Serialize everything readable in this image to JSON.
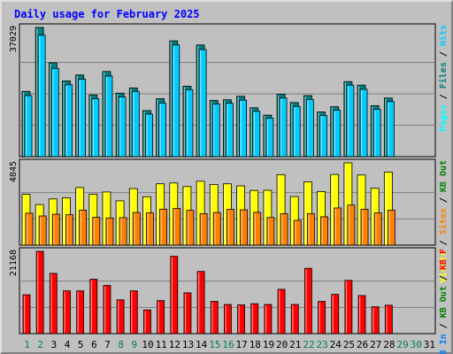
{
  "chart_data": {
    "type": "bar",
    "title": "Daily usage for February 2025",
    "categories": [
      "1",
      "2",
      "3",
      "4",
      "5",
      "6",
      "7",
      "8",
      "9",
      "10",
      "11",
      "12",
      "13",
      "14",
      "15",
      "16",
      "17",
      "18",
      "19",
      "20",
      "21",
      "22",
      "23",
      "24",
      "25",
      "26",
      "27",
      "28",
      "29",
      "30",
      "31"
    ],
    "weekend_days": [
      "1",
      "2",
      "8",
      "9",
      "15",
      "16",
      "22",
      "23",
      "29",
      "30"
    ],
    "colors": {
      "title": "#0000ff",
      "hits": "#00ccff",
      "files": "#008080",
      "pages": "#00ffff",
      "visits": "#ffff00",
      "sites": "#ff8000",
      "kb_f": "#ff0000",
      "kb_out": "#008000",
      "kb_in": "#0080ff",
      "weekday_label": "#000000",
      "weekend_label": "#00805c",
      "plot_bg": "#c0c0c0",
      "grid": "#808080"
    },
    "panels": [
      {
        "max_label": "37029",
        "max": 37029,
        "legend": [
          {
            "text": "Pages",
            "color": "#00ffff"
          },
          {
            "text": "Files",
            "color": "#008080"
          },
          {
            "text": "Hits",
            "color": "#00ccff"
          }
        ],
        "series": [
          {
            "name": "Hits",
            "values": [
              18700,
              37029,
              26900,
              21700,
              23400,
              17700,
              24400,
              18200,
              19700,
              13200,
              16600,
              33200,
              20200,
              32000,
              16100,
              16300,
              17300,
              14000,
              11900,
              17900,
              15500,
              17500,
              12800,
              14300,
              21500,
              20500,
              14600,
              16800
            ]
          },
          {
            "name": "Files",
            "values": [
              17500,
              34800,
              25300,
              20600,
              22200,
              16600,
              23100,
              17100,
              18700,
              12200,
              15400,
              32000,
              19200,
              30700,
              15100,
              15300,
              16200,
              13000,
              11000,
              16800,
              14400,
              16400,
              11800,
              13300,
              20500,
              19300,
              13600,
              15800
            ]
          }
        ]
      },
      {
        "max_label": "4845",
        "max": 4845,
        "legend": [
          {
            "text": "Visits",
            "color": "#ffff00"
          },
          {
            "text": "Sites",
            "color": "#ff8000"
          },
          {
            "text": "KB Out",
            "color": "#008000"
          }
        ],
        "series": [
          {
            "name": "Visits",
            "values": [
              2990,
              2390,
              2720,
              2790,
              3390,
              2990,
              3130,
              2610,
              3330,
              2850,
              3610,
              3660,
              3450,
              3760,
              3570,
              3610,
              3490,
              3220,
              3230,
              4150,
              2860,
              3720,
              3160,
              4160,
              4845,
              4130,
              3350,
              4300
            ]
          },
          {
            "name": "Sites",
            "values": [
              1880,
              1720,
              1820,
              1790,
              2060,
              1640,
              1600,
              1620,
              1920,
              1900,
              2120,
              2160,
              2050,
              1850,
              1920,
              2110,
              2080,
              1930,
              1630,
              1850,
              1460,
              1850,
              1670,
              2190,
              2360,
              2110,
              1900,
              2060
            ]
          }
        ]
      },
      {
        "max_label": "21168",
        "max": 21168,
        "legend": [
          {
            "text": "KB In",
            "color": "#0080ff"
          },
          {
            "text": "KB Out",
            "color": "#008000"
          },
          {
            "text": "KB F",
            "color": "#ff0000"
          }
        ],
        "series": [
          {
            "name": "KB F",
            "values": [
              10000,
              21168,
              15500,
              11000,
              11000,
              14000,
              12400,
              8700,
              11000,
              6100,
              8500,
              19900,
              10500,
              16000,
              8300,
              7500,
              7400,
              7700,
              7500,
              11400,
              7500,
              16800,
              8300,
              10100,
              13700,
              9800,
              6900,
              7300
            ]
          }
        ]
      }
    ]
  }
}
